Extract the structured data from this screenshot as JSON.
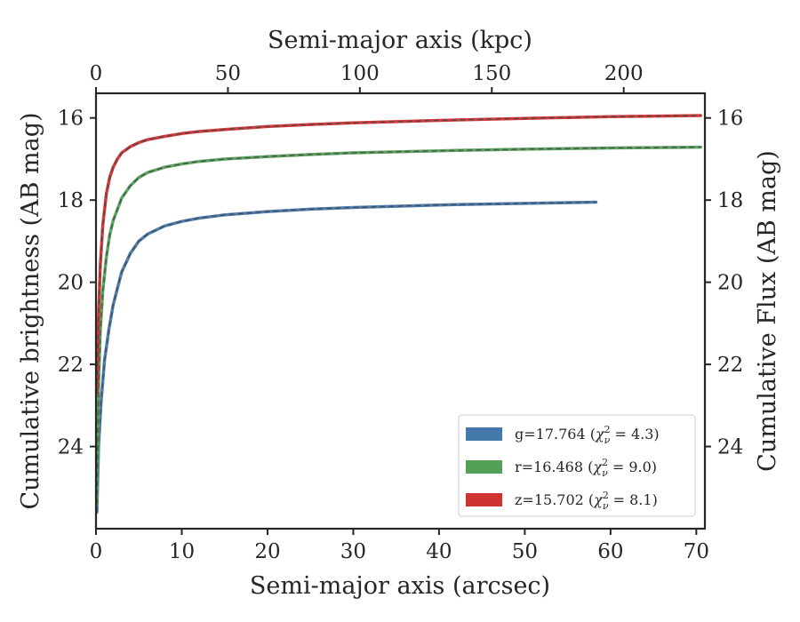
{
  "chart_data": {
    "type": "line",
    "xlabel": "Semi-major axis (arcsec)",
    "x2label": "Semi-major axis (kpc)",
    "ylabel": "Cumulative brightness (AB mag)",
    "y2label": "Cumulative Flux (AB mag)",
    "xlim": [
      0,
      71
    ],
    "x2lim": [
      0,
      230.75
    ],
    "ylim": [
      26.0,
      15.4
    ],
    "y_inverted": true,
    "x_ticks": [
      0,
      10,
      20,
      30,
      40,
      50,
      60,
      70
    ],
    "x2_ticks": [
      0,
      50,
      100,
      150,
      200
    ],
    "y_ticks": [
      16,
      18,
      20,
      22,
      24
    ],
    "y2_ticks": [
      16,
      18,
      20,
      22,
      24
    ],
    "grid": false,
    "legend_position": "lower-right",
    "series": [
      {
        "name": "g=17.764 (χ²ν = 4.3)",
        "legend_prefix": "g=17.764 (",
        "legend_math": "χ",
        "legend_sup": "2",
        "legend_sub": "ν",
        "legend_suffix": " = 4.3)",
        "color": "#4477aa",
        "x": [
          0.1,
          0.3,
          0.6,
          1.0,
          1.5,
          2,
          3,
          4,
          5,
          6,
          8,
          10,
          12,
          15,
          20,
          25,
          30,
          40,
          50,
          58.3
        ],
        "y": [
          25.6,
          24.0,
          22.9,
          21.9,
          21.15,
          20.55,
          19.75,
          19.3,
          19.0,
          18.83,
          18.63,
          18.52,
          18.44,
          18.36,
          18.28,
          18.22,
          18.18,
          18.12,
          18.08,
          18.05
        ]
      },
      {
        "name": "r=16.468 (χ²ν = 9.0)",
        "legend_prefix": "r=16.468 (",
        "legend_math": "χ",
        "legend_sup": "2",
        "legend_sub": "ν",
        "legend_suffix": " = 9.0)",
        "color": "#55a058",
        "x": [
          0.1,
          0.3,
          0.5,
          0.8,
          1.2,
          1.6,
          2,
          3,
          4,
          5,
          6,
          8,
          10,
          12,
          15,
          20,
          25,
          30,
          40,
          50,
          60,
          70.5
        ],
        "y": [
          25.4,
          22.5,
          21.2,
          20.2,
          19.4,
          18.85,
          18.5,
          17.95,
          17.65,
          17.45,
          17.33,
          17.2,
          17.12,
          17.06,
          17.0,
          16.94,
          16.89,
          16.85,
          16.8,
          16.76,
          16.73,
          16.71
        ]
      },
      {
        "name": "z=15.702 (χ²ν = 8.1)",
        "legend_prefix": "z=15.702 (",
        "legend_math": "χ",
        "legend_sup": "2",
        "legend_sub": "ν",
        "legend_suffix": " = 8.1)",
        "color": "#d03232",
        "x": [
          0.1,
          0.3,
          0.5,
          0.8,
          1.2,
          1.6,
          2,
          2.5,
          3,
          4,
          5,
          6,
          8,
          10,
          12,
          15,
          20,
          25,
          30,
          40,
          50,
          60,
          70.5
        ],
        "y": [
          22.7,
          20.8,
          19.6,
          18.6,
          17.85,
          17.45,
          17.2,
          17.0,
          16.85,
          16.7,
          16.6,
          16.53,
          16.45,
          16.38,
          16.33,
          16.28,
          16.21,
          16.16,
          16.12,
          16.06,
          16.01,
          15.97,
          15.94
        ]
      }
    ]
  }
}
